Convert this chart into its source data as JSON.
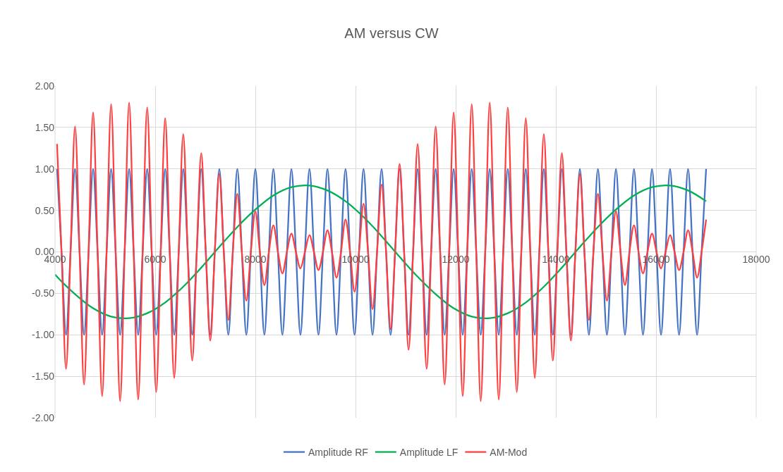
{
  "chart_data": {
    "type": "line",
    "title": "AM versus CW",
    "x": [
      4040,
      4130,
      4220,
      4310,
      4400,
      4490,
      4580,
      4670,
      4760,
      4850,
      4940,
      5030,
      5120,
      5210,
      5300,
      5390,
      5480,
      5570,
      5660,
      5750,
      5840,
      5930,
      6020,
      6110,
      6200,
      6290,
      6380,
      6470,
      6560,
      6650,
      6740,
      6830,
      6920,
      7010,
      7100,
      7190,
      7280,
      7370,
      7460,
      7550,
      7640,
      7730,
      7820,
      7910,
      8000,
      8090,
      8180,
      8270,
      8360,
      8450,
      8540,
      8630,
      8720,
      8810,
      8900,
      8990,
      9080,
      9170,
      9260,
      9350,
      9440,
      9530,
      9620,
      9710,
      9800,
      9890,
      9980,
      10070,
      10160,
      10250,
      10340,
      10430,
      10520,
      10610,
      10700,
      10790,
      10880,
      10970,
      11060,
      11150,
      11240,
      11330,
      11420,
      11510,
      11600,
      11690,
      11780,
      11870,
      11960,
      12050,
      12140,
      12230,
      12320,
      12410,
      12500,
      12590,
      12680,
      12770,
      12860,
      12950,
      13040,
      13130,
      13220,
      13310,
      13400,
      13490,
      13580,
      13670,
      13760,
      13850,
      13940,
      14030,
      14120,
      14210,
      14300,
      14390,
      14480,
      14570,
      14660,
      14750,
      14840,
      14930,
      15020,
      15110,
      15200,
      15290,
      15380,
      15470,
      15560,
      15650,
      15740,
      15830,
      15920,
      16010,
      16100,
      16190,
      16280,
      16370,
      16460,
      16550,
      16640,
      16730,
      16820,
      16910,
      17000
    ],
    "series": [
      {
        "name": "Amplitude RF",
        "color": "#4472c4",
        "values": [
          1,
          0,
          -1,
          0,
          1,
          0,
          -1,
          0,
          1,
          0,
          -1,
          0,
          1,
          0,
          -1,
          0,
          1,
          0,
          -1,
          0,
          1,
          0,
          -1,
          0,
          1,
          0,
          -1,
          0,
          1,
          0,
          -1,
          0,
          1,
          0,
          -1,
          0,
          1,
          0,
          -1,
          0,
          1,
          0,
          -1,
          0,
          1,
          0,
          -1,
          0,
          1,
          0,
          -1,
          0,
          1,
          0,
          -1,
          0,
          1,
          0,
          -1,
          0,
          1,
          0,
          -1,
          0,
          1,
          0,
          -1,
          0,
          1,
          0,
          -1,
          0,
          1,
          0,
          -1,
          0,
          1,
          0,
          -1,
          0,
          1,
          0,
          -1,
          0,
          1,
          0,
          -1,
          0,
          1,
          0,
          -1,
          0,
          1,
          0,
          -1,
          0,
          1,
          0,
          -1,
          0,
          1,
          0,
          -1,
          0,
          1,
          0,
          -1,
          0,
          1,
          0,
          -1,
          0,
          1,
          0,
          -1,
          0,
          1,
          0,
          -1,
          0,
          1,
          0,
          -1,
          0,
          1,
          0,
          -1,
          0,
          1,
          0,
          -1,
          0,
          1,
          0,
          -1,
          0,
          1,
          0,
          -1,
          0,
          1,
          0,
          -1,
          0,
          1
        ]
      },
      {
        "name": "Amplitude LF",
        "color": "#00b050",
        "x": [
          4000,
          4040,
          4400,
          4760,
          5120,
          5480,
          5840,
          6200,
          6560,
          6920,
          7280,
          7640,
          8000,
          8360,
          8720,
          9080,
          9440,
          9800,
          10160,
          10520,
          10880,
          11240,
          11600,
          11960,
          12320,
          12680,
          13040,
          13400,
          13760,
          14120,
          14480,
          14840,
          15200,
          15560,
          15920,
          16280,
          16640,
          17000
        ],
        "values": [
          -0.27,
          -0.3,
          -0.51,
          -0.68,
          -0.78,
          -0.8,
          -0.74,
          -0.61,
          -0.42,
          -0.19,
          0.06,
          0.3,
          0.51,
          0.68,
          0.78,
          0.8,
          0.74,
          0.61,
          0.42,
          0.19,
          -0.06,
          -0.3,
          -0.51,
          -0.68,
          -0.78,
          -0.8,
          -0.74,
          -0.61,
          -0.42,
          -0.19,
          0.06,
          0.3,
          0.51,
          0.68,
          0.78,
          0.8,
          0.74,
          0.61
        ]
      },
      {
        "name": "AM-Mod",
        "color": "#ff3f3f",
        "values": [
          1.3,
          0,
          -1.41,
          0,
          1.51,
          0,
          -1.6,
          0,
          1.68,
          0,
          -1.74,
          0,
          1.78,
          0,
          -1.8,
          0,
          1.8,
          0,
          -1.78,
          0,
          1.74,
          0,
          -1.69,
          0,
          1.61,
          0,
          -1.52,
          0,
          1.42,
          0,
          -1.31,
          0,
          1.19,
          0,
          -1.07,
          0,
          0.94,
          0,
          -0.82,
          0,
          0.7,
          0,
          -0.59,
          0,
          0.49,
          0,
          -0.4,
          0,
          0.32,
          0,
          -0.26,
          0,
          0.22,
          0,
          -0.2,
          0,
          0.2,
          0,
          -0.22,
          0,
          0.26,
          0,
          -0.31,
          0,
          0.39,
          0,
          -0.48,
          0,
          0.58,
          0,
          -0.69,
          0,
          0.81,
          0,
          -0.93,
          0,
          1.06,
          0,
          -1.18,
          0,
          1.3,
          0,
          -1.41,
          0,
          1.51,
          0,
          -1.6,
          0,
          1.68,
          0,
          -1.74,
          0,
          1.78,
          0,
          -1.8,
          0,
          1.8,
          0,
          -1.78,
          0,
          1.74,
          0,
          -1.69,
          0,
          1.61,
          0,
          -1.52,
          0,
          1.42,
          0,
          -1.31,
          0,
          1.19,
          0,
          -1.07,
          0,
          0.94,
          0,
          -0.82,
          0,
          0.7,
          0,
          -0.59,
          0,
          0.49,
          0,
          -0.4,
          0,
          0.32,
          0,
          -0.26,
          0,
          0.22,
          0,
          -0.2,
          0,
          0.2,
          0,
          -0.22,
          0,
          0.26,
          0,
          -0.31,
          0,
          0.39
        ]
      }
    ],
    "xlim": [
      4000,
      18000
    ],
    "xticks": [
      4000,
      6000,
      8000,
      10000,
      12000,
      14000,
      16000,
      18000
    ],
    "ylim": [
      -2,
      2
    ],
    "yticks": [
      {
        "value": -2,
        "label": "-2.00"
      },
      {
        "value": -1.5,
        "label": "-1.50"
      },
      {
        "value": -1,
        "label": "-1.00"
      },
      {
        "value": -0.5,
        "label": "-0.50"
      },
      {
        "value": 0,
        "label": "0.00"
      },
      {
        "value": 0.5,
        "label": "0.50"
      },
      {
        "value": 1,
        "label": "1.00"
      },
      {
        "value": 1.5,
        "label": "1.50"
      },
      {
        "value": 2,
        "label": "2.00"
      }
    ],
    "grid": true,
    "legend": "bottom",
    "marker": "none",
    "line_style": "solid"
  }
}
